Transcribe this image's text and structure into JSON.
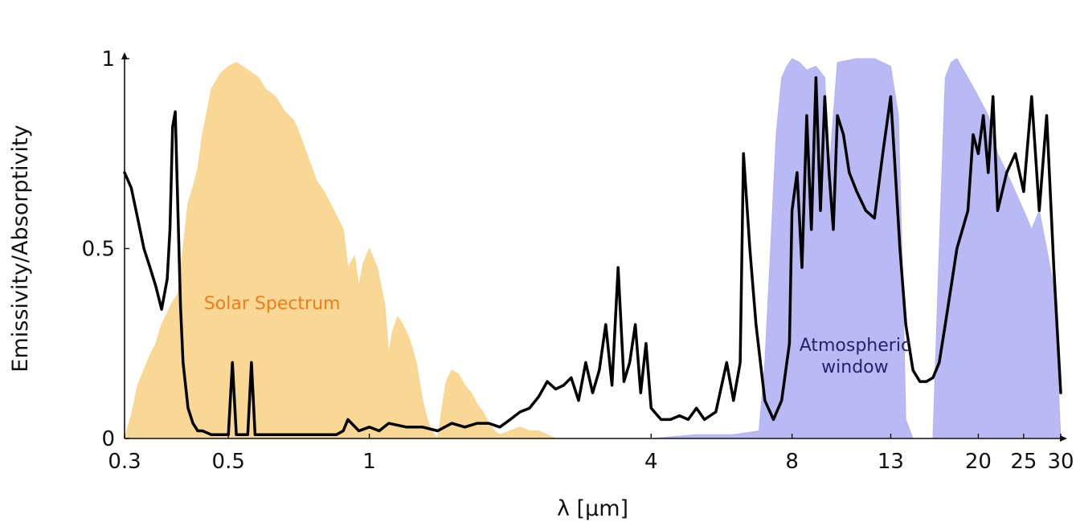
{
  "chart_data": {
    "type": "area",
    "xlabel": "λ [μm]",
    "ylabel": "Emissivity/Absorptivity",
    "xscale": "log",
    "xlim": [
      0.3,
      30
    ],
    "ylim": [
      0,
      1
    ],
    "x_ticks": [
      {
        "value": 0.3,
        "label": "0.3"
      },
      {
        "value": 0.5,
        "label": "0.5"
      },
      {
        "value": 1,
        "label": "1"
      },
      {
        "value": 4,
        "label": "4"
      },
      {
        "value": 8,
        "label": "8"
      },
      {
        "value": 13,
        "label": "13"
      },
      {
        "value": 20,
        "label": "20"
      },
      {
        "value": 25,
        "label": "25"
      },
      {
        "value": 30,
        "label": "30"
      }
    ],
    "y_ticks": [
      {
        "value": 0,
        "label": "0"
      },
      {
        "value": 0.5,
        "label": "0.5"
      },
      {
        "value": 1,
        "label": "1"
      }
    ],
    "grid": false,
    "annotations": [
      {
        "id": "solar",
        "lines": [
          "Solar Spectrum"
        ],
        "x": 0.62,
        "y": 0.34
      },
      {
        "id": "atm",
        "lines": [
          "Atmospheric",
          "window"
        ],
        "x": 10.9,
        "y": 0.23
      }
    ],
    "colors": {
      "solar": "#f9d48b",
      "atmosphere": "#b3b3f5",
      "emissivity": "#000000",
      "solar_text": "#ee7d1a",
      "atm_text": "#23236b"
    },
    "series": [
      {
        "id": "solar",
        "style": "area",
        "x": [
          0.3,
          0.31,
          0.32,
          0.33,
          0.34,
          0.35,
          0.36,
          0.37,
          0.38,
          0.39,
          0.4,
          0.41,
          0.42,
          0.43,
          0.44,
          0.45,
          0.46,
          0.48,
          0.5,
          0.52,
          0.55,
          0.58,
          0.6,
          0.63,
          0.66,
          0.687,
          0.7,
          0.72,
          0.74,
          0.76,
          0.77,
          0.8,
          0.84,
          0.88,
          0.9,
          0.93,
          0.95,
          0.97,
          1.0,
          1.04,
          1.08,
          1.1,
          1.12,
          1.15,
          1.18,
          1.22,
          1.26,
          1.3,
          1.33,
          1.36,
          1.4,
          1.43,
          1.46,
          1.5,
          1.55,
          1.6,
          1.65,
          1.7,
          1.75,
          1.8,
          1.85,
          1.9,
          2.0,
          2.1,
          2.2,
          2.3,
          2.4,
          2.5,
          2.6
        ],
        "y": [
          0.0,
          0.06,
          0.14,
          0.18,
          0.22,
          0.25,
          0.3,
          0.33,
          0.36,
          0.38,
          0.5,
          0.62,
          0.66,
          0.71,
          0.8,
          0.86,
          0.92,
          0.96,
          0.98,
          0.99,
          0.97,
          0.95,
          0.92,
          0.9,
          0.86,
          0.84,
          0.82,
          0.78,
          0.74,
          0.7,
          0.68,
          0.65,
          0.6,
          0.55,
          0.45,
          0.48,
          0.4,
          0.46,
          0.5,
          0.45,
          0.35,
          0.22,
          0.28,
          0.32,
          0.3,
          0.26,
          0.2,
          0.1,
          0.05,
          0.02,
          0.0,
          0.08,
          0.15,
          0.18,
          0.17,
          0.14,
          0.12,
          0.09,
          0.07,
          0.04,
          0.02,
          0.01,
          0.02,
          0.03,
          0.02,
          0.02,
          0.01,
          0.0,
          0.0
        ]
      },
      {
        "id": "atmosphere",
        "style": "area",
        "x": [
          4.0,
          5.0,
          6.0,
          6.8,
          7.0,
          7.2,
          7.4,
          7.6,
          7.8,
          8.0,
          8.3,
          8.6,
          9.0,
          9.4,
          9.6,
          9.8,
          10.0,
          11.0,
          12.0,
          13.0,
          13.5,
          13.8,
          14.0,
          14.5,
          16.0,
          16.5,
          17.0,
          17.5,
          18.0,
          19.0,
          20.0,
          21.0,
          22.0,
          23.0,
          24.0,
          25.0,
          26.0,
          27.0,
          28.0,
          29.0,
          30.0
        ],
        "y": [
          0.0,
          0.01,
          0.01,
          0.02,
          0.2,
          0.5,
          0.8,
          0.95,
          0.98,
          1.0,
          0.99,
          0.97,
          0.98,
          0.95,
          0.7,
          0.85,
          0.99,
          1.0,
          1.0,
          0.98,
          0.85,
          0.4,
          0.05,
          0.0,
          0.0,
          0.5,
          0.95,
          0.99,
          1.0,
          0.95,
          0.9,
          0.85,
          0.75,
          0.7,
          0.65,
          0.6,
          0.55,
          0.6,
          0.5,
          0.4,
          0.0
        ]
      },
      {
        "id": "emissivity",
        "style": "line",
        "x": [
          0.3,
          0.31,
          0.32,
          0.33,
          0.34,
          0.35,
          0.36,
          0.37,
          0.375,
          0.38,
          0.385,
          0.39,
          0.395,
          0.4,
          0.41,
          0.42,
          0.43,
          0.44,
          0.46,
          0.48,
          0.5,
          0.51,
          0.52,
          0.55,
          0.56,
          0.57,
          0.6,
          0.7,
          0.8,
          0.85,
          0.88,
          0.9,
          0.95,
          1.0,
          1.05,
          1.1,
          1.2,
          1.3,
          1.4,
          1.5,
          1.6,
          1.7,
          1.8,
          1.9,
          2.0,
          2.1,
          2.2,
          2.3,
          2.4,
          2.5,
          2.6,
          2.7,
          2.8,
          2.9,
          3.0,
          3.1,
          3.2,
          3.3,
          3.4,
          3.5,
          3.6,
          3.7,
          3.8,
          3.9,
          4.0,
          4.2,
          4.4,
          4.6,
          4.8,
          5.0,
          5.2,
          5.5,
          5.8,
          6.0,
          6.2,
          6.3,
          6.5,
          6.7,
          7.0,
          7.3,
          7.6,
          7.9,
          8.0,
          8.2,
          8.4,
          8.6,
          8.8,
          9.0,
          9.2,
          9.4,
          9.6,
          9.8,
          10.0,
          10.3,
          10.6,
          11.0,
          11.5,
          12.0,
          12.5,
          13.0,
          13.3,
          13.6,
          14.0,
          14.5,
          15.0,
          15.5,
          16.0,
          16.5,
          17.0,
          17.5,
          18.0,
          18.5,
          19.0,
          19.5,
          20.0,
          20.5,
          21.0,
          21.5,
          22.0,
          23.0,
          24.0,
          25.0,
          26.0,
          27.0,
          28.0,
          29.0,
          30.0
        ],
        "y": [
          0.7,
          0.66,
          0.58,
          0.5,
          0.45,
          0.4,
          0.34,
          0.42,
          0.55,
          0.82,
          0.86,
          0.6,
          0.35,
          0.2,
          0.08,
          0.04,
          0.02,
          0.02,
          0.01,
          0.01,
          0.01,
          0.2,
          0.01,
          0.01,
          0.2,
          0.01,
          0.01,
          0.01,
          0.01,
          0.01,
          0.02,
          0.05,
          0.02,
          0.03,
          0.02,
          0.04,
          0.03,
          0.03,
          0.02,
          0.04,
          0.03,
          0.04,
          0.04,
          0.03,
          0.05,
          0.07,
          0.08,
          0.11,
          0.15,
          0.13,
          0.14,
          0.16,
          0.1,
          0.2,
          0.12,
          0.18,
          0.3,
          0.14,
          0.45,
          0.15,
          0.2,
          0.3,
          0.12,
          0.25,
          0.08,
          0.05,
          0.05,
          0.06,
          0.05,
          0.08,
          0.05,
          0.07,
          0.2,
          0.1,
          0.2,
          0.75,
          0.5,
          0.3,
          0.1,
          0.05,
          0.1,
          0.25,
          0.6,
          0.7,
          0.45,
          0.85,
          0.55,
          0.95,
          0.6,
          0.9,
          0.7,
          0.55,
          0.85,
          0.8,
          0.7,
          0.65,
          0.6,
          0.58,
          0.75,
          0.9,
          0.7,
          0.5,
          0.3,
          0.18,
          0.15,
          0.15,
          0.16,
          0.2,
          0.3,
          0.4,
          0.5,
          0.55,
          0.6,
          0.8,
          0.75,
          0.85,
          0.7,
          0.9,
          0.6,
          0.7,
          0.75,
          0.65,
          0.9,
          0.6,
          0.85,
          0.45,
          0.12
        ]
      }
    ]
  }
}
